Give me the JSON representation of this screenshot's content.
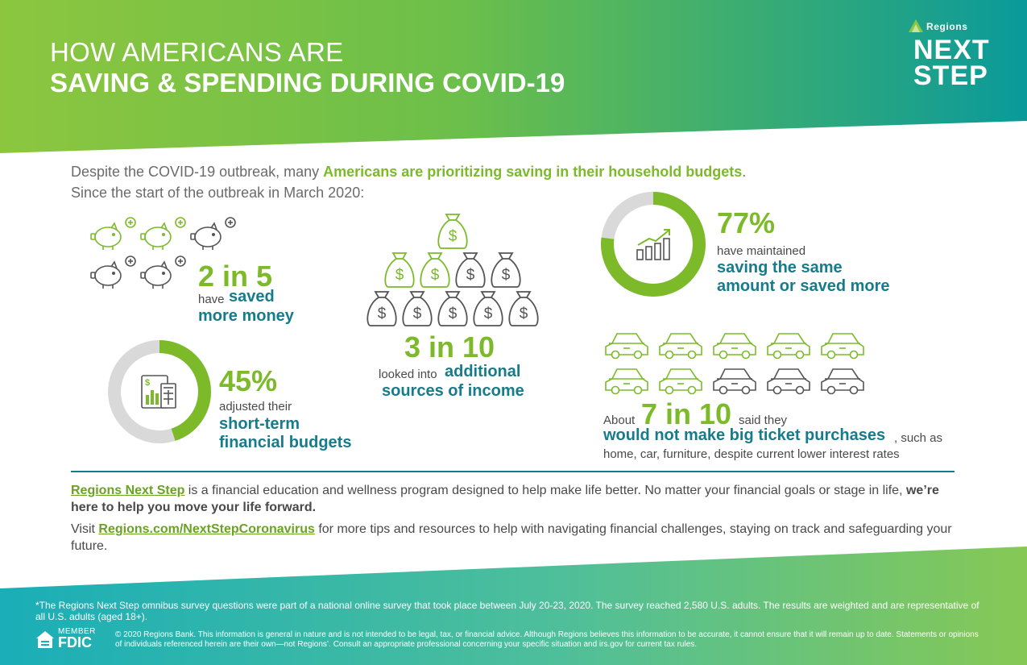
{
  "header": {
    "title_line1": "HOW AMERICANS ARE",
    "title_line2": "SAVING & SPENDING DURING COVID-19",
    "brand_small": "Regions",
    "brand_next": "NEXT",
    "brand_step": "STEP"
  },
  "intro": {
    "line1_pre": "Despite the COVID-19 outbreak, many ",
    "line1_bold": "Americans are prioritizing saving in their household budgets",
    "line1_post": ".",
    "line2": "Since the start of the outbreak in March 2020:"
  },
  "stats": {
    "saved": {
      "number": "2 in 5",
      "prefix": "have",
      "line1": "saved",
      "line2": "more money",
      "filled": 2,
      "total": 5
    },
    "budgets": {
      "number": "45%",
      "prefix": "adjusted their",
      "line1": "short-term",
      "line2": "financial budgets",
      "percent": 45
    },
    "income": {
      "number": "3 in 10",
      "prefix": "looked into",
      "line1": "additional",
      "line2": "sources of income",
      "filled": 3,
      "total": 10
    },
    "maintained": {
      "number": "77%",
      "prefix": "have maintained",
      "line1": "saving the same",
      "line2": "amount or saved more",
      "percent": 77
    },
    "purchases": {
      "pre": "About",
      "number": "7 in 10",
      "post": "said they",
      "line1": "would not make big ticket purchases",
      "post2": ", such as",
      "line2": "home, car, furniture, despite current lower interest rates",
      "filled": 7,
      "total": 10
    }
  },
  "program": {
    "link1": "Regions Next Step",
    "text1": " is a financial education and wellness program designed to help make life better. No matter your financial goals or stage in life, ",
    "bold1": "we’re here to help you move your life forward.",
    "visit": "Visit ",
    "link2": "Regions.com/NextStepCoronavirus",
    "text2": " for more tips and resources to help with navigating financial challenges, staying on track and safeguarding your future."
  },
  "footer": {
    "survey": "*The Regions Next Step omnibus survey questions were part of a national online survey that took place between July 20-23, 2020. The survey reached 2,580 U.S. adults. The results are weighted and are representative of all U.S. adults (aged 18+).",
    "fdic_member": "MEMBER",
    "fdic": "FDIC",
    "legal": "© 2020 Regions Bank. This information is general in nature and is not intended to be legal, tax, or financial advice. Although Regions believes this information to be accurate, it cannot ensure that it will remain up to date. Statements or opinions of individuals referenced herein are their own—not Regions’. Consult an appropriate professional concerning your specific situation and irs.gov for current tax rules."
  },
  "colors": {
    "green": "#7cba2a",
    "teal": "#167c8c",
    "grey": "#5a5a5a",
    "ring_grey": "#d9d9d9"
  }
}
